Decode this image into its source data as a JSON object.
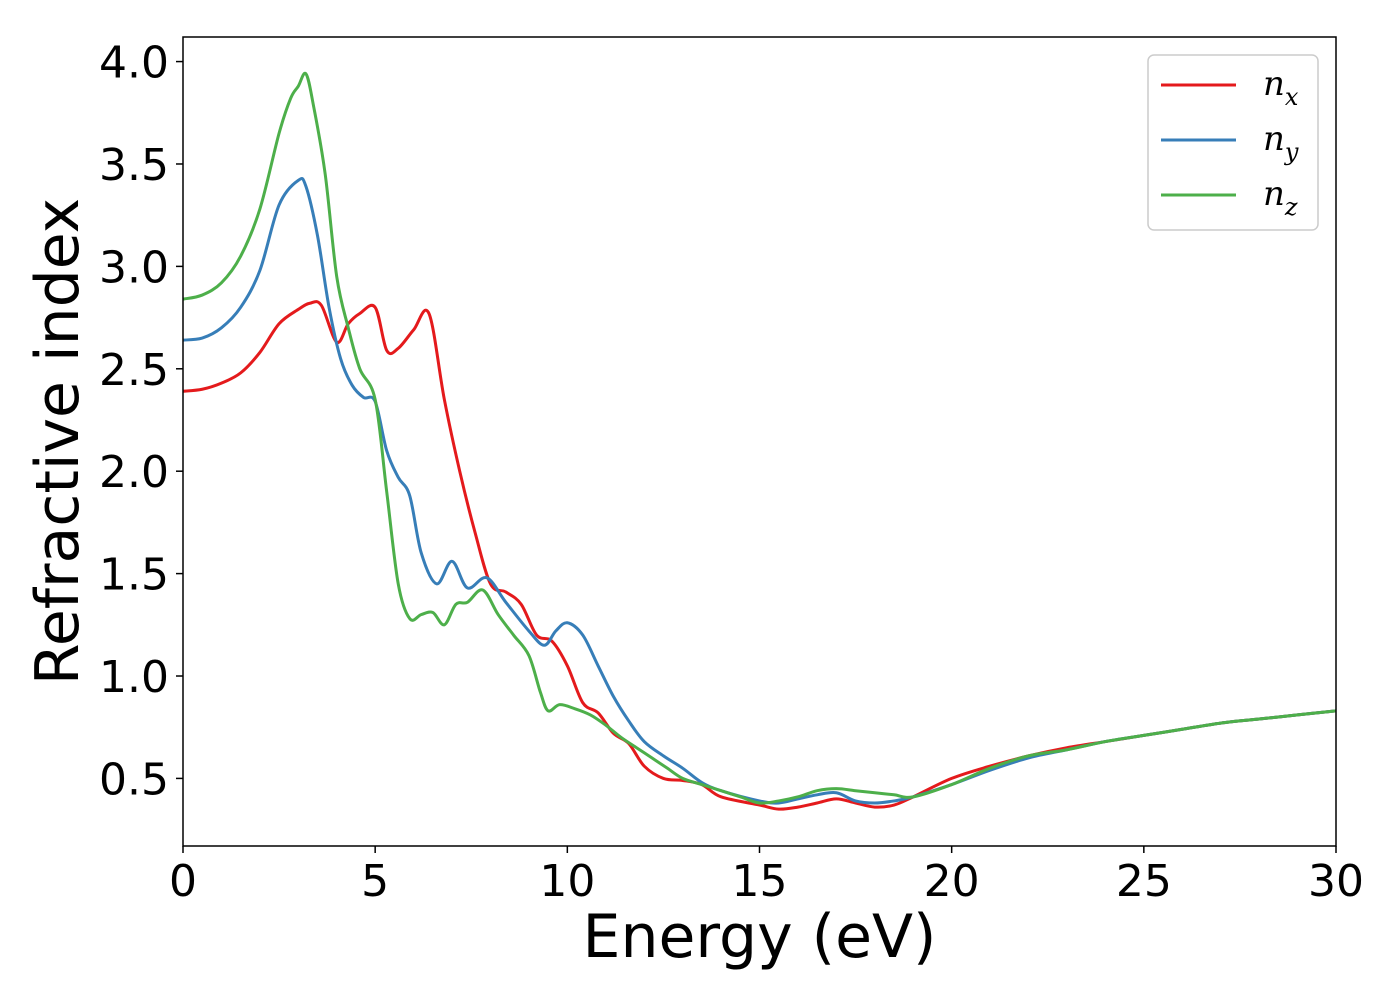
{
  "chart_data": {
    "type": "line",
    "xlabel": "Energy (eV)",
    "ylabel": "Refractive index",
    "xlim": [
      0,
      30
    ],
    "ylim": [
      0.17,
      4.12
    ],
    "xticks": [
      "0",
      "5",
      "10",
      "15",
      "20",
      "25",
      "30"
    ],
    "yticks": [
      "0.5",
      "1.0",
      "1.5",
      "2.0",
      "2.5",
      "3.0",
      "3.5",
      "4.0"
    ],
    "grid": false,
    "legend_position": "top-right",
    "series": [
      {
        "name": "n",
        "subscript": "x",
        "color": "#e41a1c",
        "x": [
          0,
          0.5,
          1,
          1.5,
          2,
          2.5,
          3,
          3.3,
          3.6,
          4,
          4.3,
          4.6,
          5,
          5.3,
          5.6,
          6,
          6.4,
          6.8,
          7.2,
          7.6,
          8,
          8.4,
          8.8,
          9.2,
          9.6,
          10,
          10.4,
          10.8,
          11.2,
          11.6,
          12,
          12.5,
          13,
          13.5,
          14,
          15,
          15.5,
          16,
          16.5,
          17,
          17.5,
          18,
          18.5,
          19,
          20,
          21,
          22,
          23,
          24,
          25,
          26,
          27,
          28,
          29,
          30
        ],
        "y": [
          2.39,
          2.4,
          2.43,
          2.48,
          2.58,
          2.72,
          2.79,
          2.82,
          2.81,
          2.63,
          2.72,
          2.77,
          2.8,
          2.59,
          2.6,
          2.69,
          2.77,
          2.35,
          2.0,
          1.7,
          1.45,
          1.41,
          1.35,
          1.2,
          1.17,
          1.05,
          0.87,
          0.82,
          0.72,
          0.67,
          0.56,
          0.5,
          0.49,
          0.47,
          0.41,
          0.37,
          0.35,
          0.36,
          0.38,
          0.4,
          0.38,
          0.36,
          0.37,
          0.41,
          0.5,
          0.56,
          0.61,
          0.65,
          0.68,
          0.71,
          0.74,
          0.77,
          0.79,
          0.81,
          0.83
        ]
      },
      {
        "name": "n",
        "subscript": "y",
        "color": "#377eb8",
        "x": [
          0,
          0.5,
          1,
          1.5,
          2,
          2.5,
          3,
          3.2,
          3.5,
          3.8,
          4.1,
          4.4,
          4.7,
          5,
          5.3,
          5.6,
          5.9,
          6.2,
          6.6,
          7,
          7.4,
          7.9,
          8.4,
          9,
          9.4,
          9.7,
          10,
          10.4,
          10.8,
          11.2,
          11.6,
          12,
          12.5,
          13,
          13.5,
          14,
          15,
          15.5,
          16,
          16.5,
          17,
          17.5,
          18,
          18.5,
          19,
          20,
          21,
          22,
          23,
          24,
          25,
          26,
          27,
          28,
          29,
          30
        ],
        "y": [
          2.64,
          2.65,
          2.7,
          2.8,
          2.98,
          3.3,
          3.42,
          3.39,
          3.15,
          2.8,
          2.55,
          2.42,
          2.36,
          2.34,
          2.1,
          1.97,
          1.88,
          1.6,
          1.45,
          1.56,
          1.43,
          1.48,
          1.36,
          1.22,
          1.15,
          1.22,
          1.26,
          1.2,
          1.05,
          0.9,
          0.78,
          0.68,
          0.61,
          0.55,
          0.48,
          0.44,
          0.39,
          0.38,
          0.4,
          0.42,
          0.43,
          0.39,
          0.38,
          0.39,
          0.41,
          0.47,
          0.54,
          0.6,
          0.64,
          0.68,
          0.71,
          0.74,
          0.77,
          0.79,
          0.81,
          0.83
        ]
      },
      {
        "name": "n",
        "subscript": "z",
        "color": "#4daf4a",
        "x": [
          0,
          0.5,
          1,
          1.5,
          2,
          2.5,
          2.8,
          3.0,
          3.2,
          3.4,
          3.7,
          4.0,
          4.3,
          4.6,
          5,
          5.3,
          5.6,
          5.9,
          6.2,
          6.5,
          6.8,
          7.1,
          7.4,
          7.8,
          8.2,
          8.6,
          9,
          9.3,
          9.5,
          9.8,
          10.2,
          10.6,
          11,
          11.4,
          11.8,
          12.2,
          12.6,
          13,
          13.5,
          14,
          14.5,
          15,
          15.5,
          16,
          16.5,
          17,
          17.5,
          18,
          18.5,
          19,
          20,
          21,
          22,
          23,
          24,
          25,
          26,
          27,
          28,
          29,
          30
        ],
        "y": [
          2.84,
          2.86,
          2.92,
          3.05,
          3.28,
          3.65,
          3.82,
          3.88,
          3.94,
          3.78,
          3.45,
          2.95,
          2.7,
          2.5,
          2.35,
          1.9,
          1.45,
          1.28,
          1.3,
          1.31,
          1.25,
          1.35,
          1.36,
          1.42,
          1.3,
          1.2,
          1.1,
          0.92,
          0.83,
          0.86,
          0.84,
          0.81,
          0.76,
          0.7,
          0.65,
          0.6,
          0.55,
          0.5,
          0.47,
          0.44,
          0.41,
          0.38,
          0.39,
          0.41,
          0.44,
          0.45,
          0.44,
          0.43,
          0.42,
          0.41,
          0.47,
          0.55,
          0.61,
          0.64,
          0.68,
          0.71,
          0.74,
          0.77,
          0.79,
          0.81,
          0.83
        ]
      }
    ]
  }
}
